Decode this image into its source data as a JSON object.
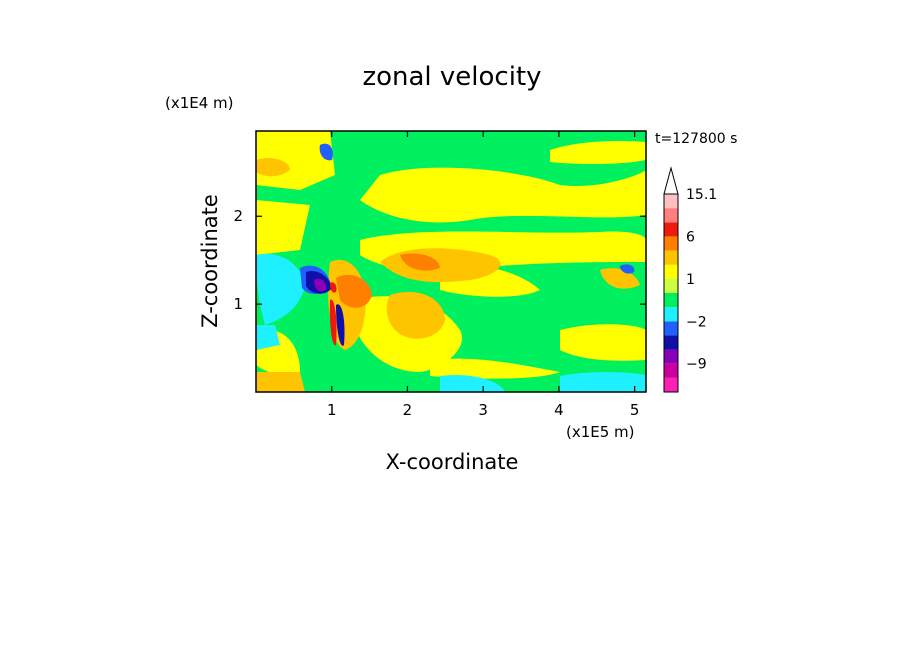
{
  "chart_data": {
    "type": "heatmap",
    "title": "zonal velocity",
    "xlabel": "X-coordinate",
    "ylabel": "Z-coordinate",
    "x_unit": "(x1E5 m)",
    "y_unit": "(x1E4 m)",
    "time_label": "t=127800 s",
    "xlim": [
      0,
      5.15
    ],
    "ylim": [
      0,
      2.97
    ],
    "x_ticks": [
      1,
      2,
      3,
      4,
      5
    ],
    "y_ticks": [
      1,
      2
    ],
    "x_tick_labels": [
      "1",
      "2",
      "3",
      "4",
      "5"
    ],
    "y_tick_labels": [
      "1",
      "2"
    ],
    "colorbar": {
      "levels": [
        -15,
        -12,
        -9,
        -6,
        -4,
        -2,
        -1,
        0,
        1,
        2,
        4,
        6,
        9,
        12,
        15.1
      ],
      "labeled_levels": [
        "15.1",
        "6",
        "1",
        "−2",
        "−9"
      ],
      "colors": [
        "#ff1fb4",
        "#cc00a0",
        "#8a00b8",
        "#1010a8",
        "#2060ff",
        "#1ff0ff",
        "#00f060",
        "#c8ff40",
        "#ffff00",
        "#ffc400",
        "#ff7f00",
        "#ee1a0c",
        "#ff7e7e",
        "#ffbfbf"
      ],
      "extend_max": true
    },
    "grid": false
  }
}
